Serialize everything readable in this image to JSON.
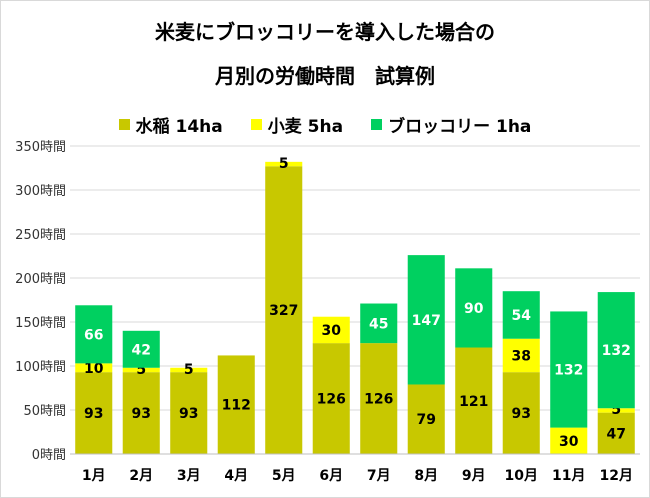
{
  "chart_data": {
    "type": "bar",
    "stacked": true,
    "title_line1": "米麦にブロッコリーを導入した場合の",
    "title_line2": "月別の労働時間　試算例",
    "categories": [
      "1月",
      "2月",
      "3月",
      "4月",
      "5月",
      "6月",
      "7月",
      "8月",
      "9月",
      "10月",
      "11月",
      "12月"
    ],
    "series": [
      {
        "name": "水稲 14ha",
        "color": "#c8c800",
        "label_color": "#000000",
        "values": [
          93,
          93,
          93,
          112,
          327,
          126,
          126,
          79,
          121,
          93,
          0,
          47
        ]
      },
      {
        "name": "小麦 5ha",
        "color": "#ffff00",
        "label_color": "#000000",
        "values": [
          10,
          5,
          5,
          0,
          5,
          30,
          0,
          0,
          0,
          38,
          30,
          5
        ]
      },
      {
        "name": "ブロッコリー 1ha",
        "color": "#00d060",
        "label_color": "#ffffff",
        "values": [
          66,
          42,
          0,
          0,
          0,
          0,
          45,
          147,
          90,
          54,
          132,
          132
        ]
      }
    ],
    "yticks": [
      "0時間",
      "50時間",
      "100時間",
      "150時間",
      "200時間",
      "250時間",
      "300時間",
      "350時間"
    ],
    "ylim": [
      0,
      350
    ],
    "grid": true,
    "legend_position": "top"
  }
}
